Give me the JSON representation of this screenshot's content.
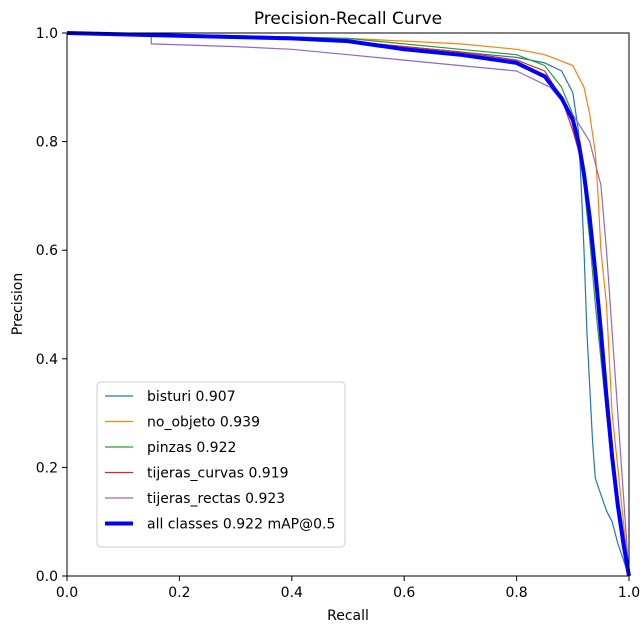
{
  "chart_data": {
    "type": "line",
    "title": "Precision-Recall Curve",
    "xlabel": "Recall",
    "ylabel": "Precision",
    "xlim": [
      0.0,
      1.0
    ],
    "ylim": [
      0.0,
      1.0
    ],
    "x_ticks": [
      "0.0",
      "0.2",
      "0.4",
      "0.6",
      "0.8",
      "1.0"
    ],
    "y_ticks": [
      "0.0",
      "0.2",
      "0.4",
      "0.6",
      "0.8",
      "1.0"
    ],
    "grid": false,
    "legend_position": "lower-left",
    "series": [
      {
        "name": "bisturi 0.907",
        "color": "#1f77b4",
        "width": 1.2,
        "points": [
          [
            0,
            1
          ],
          [
            0.2,
            0.995
          ],
          [
            0.4,
            0.99
          ],
          [
            0.5,
            0.985
          ],
          [
            0.6,
            0.975
          ],
          [
            0.7,
            0.965
          ],
          [
            0.8,
            0.955
          ],
          [
            0.85,
            0.945
          ],
          [
            0.88,
            0.93
          ],
          [
            0.9,
            0.89
          ],
          [
            0.91,
            0.82
          ],
          [
            0.915,
            0.72
          ],
          [
            0.92,
            0.6
          ],
          [
            0.925,
            0.45
          ],
          [
            0.93,
            0.35
          ],
          [
            0.935,
            0.25
          ],
          [
            0.94,
            0.18
          ],
          [
            0.95,
            0.15
          ],
          [
            0.96,
            0.12
          ],
          [
            0.97,
            0.1
          ],
          [
            0.98,
            0.06
          ],
          [
            0.99,
            0.03
          ],
          [
            1.0,
            0.0
          ]
        ]
      },
      {
        "name": "no_objeto 0.939",
        "color": "#ff7f0e",
        "width": 1.2,
        "points": [
          [
            0,
            1
          ],
          [
            0.3,
            0.995
          ],
          [
            0.5,
            0.99
          ],
          [
            0.6,
            0.985
          ],
          [
            0.7,
            0.98
          ],
          [
            0.8,
            0.97
          ],
          [
            0.85,
            0.96
          ],
          [
            0.9,
            0.94
          ],
          [
            0.92,
            0.9
          ],
          [
            0.93,
            0.85
          ],
          [
            0.94,
            0.78
          ],
          [
            0.945,
            0.7
          ],
          [
            0.95,
            0.6
          ],
          [
            0.96,
            0.5
          ],
          [
            0.965,
            0.4
          ],
          [
            0.97,
            0.3
          ],
          [
            0.98,
            0.2
          ],
          [
            0.99,
            0.1
          ],
          [
            1.0,
            0.0
          ]
        ]
      },
      {
        "name": "pinzas 0.922",
        "color": "#2ca02c",
        "width": 1.2,
        "points": [
          [
            0,
            1
          ],
          [
            0.3,
            0.995
          ],
          [
            0.5,
            0.99
          ],
          [
            0.6,
            0.98
          ],
          [
            0.7,
            0.97
          ],
          [
            0.8,
            0.96
          ],
          [
            0.85,
            0.94
          ],
          [
            0.88,
            0.9
          ],
          [
            0.9,
            0.85
          ],
          [
            0.91,
            0.8
          ],
          [
            0.92,
            0.72
          ],
          [
            0.93,
            0.62
          ],
          [
            0.94,
            0.5
          ],
          [
            0.95,
            0.4
          ],
          [
            0.96,
            0.3
          ],
          [
            0.97,
            0.22
          ],
          [
            0.98,
            0.15
          ],
          [
            0.99,
            0.08
          ],
          [
            1.0,
            0.0
          ]
        ]
      },
      {
        "name": "tijeras_curvas 0.919",
        "color": "#d62728",
        "width": 1.2,
        "points": [
          [
            0,
            1
          ],
          [
            0.3,
            0.995
          ],
          [
            0.5,
            0.985
          ],
          [
            0.6,
            0.975
          ],
          [
            0.7,
            0.965
          ],
          [
            0.8,
            0.95
          ],
          [
            0.85,
            0.93
          ],
          [
            0.88,
            0.88
          ],
          [
            0.9,
            0.82
          ],
          [
            0.92,
            0.75
          ],
          [
            0.93,
            0.65
          ],
          [
            0.94,
            0.55
          ],
          [
            0.95,
            0.42
          ],
          [
            0.96,
            0.3
          ],
          [
            0.97,
            0.2
          ],
          [
            0.98,
            0.12
          ],
          [
            0.99,
            0.06
          ],
          [
            1.0,
            0.0
          ]
        ]
      },
      {
        "name": "tijeras_rectas 0.923",
        "color": "#9467bd",
        "width": 1.2,
        "points": [
          [
            0,
            1
          ],
          [
            0.15,
            0.995
          ],
          [
            0.15,
            0.98
          ],
          [
            0.3,
            0.975
          ],
          [
            0.4,
            0.97
          ],
          [
            0.5,
            0.96
          ],
          [
            0.6,
            0.95
          ],
          [
            0.7,
            0.94
          ],
          [
            0.8,
            0.93
          ],
          [
            0.86,
            0.9
          ],
          [
            0.9,
            0.85
          ],
          [
            0.93,
            0.8
          ],
          [
            0.95,
            0.72
          ],
          [
            0.96,
            0.6
          ],
          [
            0.97,
            0.45
          ],
          [
            0.98,
            0.3
          ],
          [
            0.99,
            0.15
          ],
          [
            1.0,
            0.0
          ]
        ]
      },
      {
        "name": "all classes 0.922 mAP@0.5",
        "color": "#0000ff",
        "width": 4,
        "points": [
          [
            0,
            1
          ],
          [
            0.2,
            0.995
          ],
          [
            0.4,
            0.99
          ],
          [
            0.5,
            0.985
          ],
          [
            0.6,
            0.97
          ],
          [
            0.7,
            0.96
          ],
          [
            0.8,
            0.945
          ],
          [
            0.85,
            0.92
          ],
          [
            0.88,
            0.88
          ],
          [
            0.9,
            0.84
          ],
          [
            0.91,
            0.8
          ],
          [
            0.92,
            0.74
          ],
          [
            0.93,
            0.66
          ],
          [
            0.94,
            0.56
          ],
          [
            0.95,
            0.45
          ],
          [
            0.96,
            0.33
          ],
          [
            0.97,
            0.22
          ],
          [
            0.98,
            0.13
          ],
          [
            0.99,
            0.06
          ],
          [
            1.0,
            0.0
          ]
        ]
      }
    ]
  }
}
